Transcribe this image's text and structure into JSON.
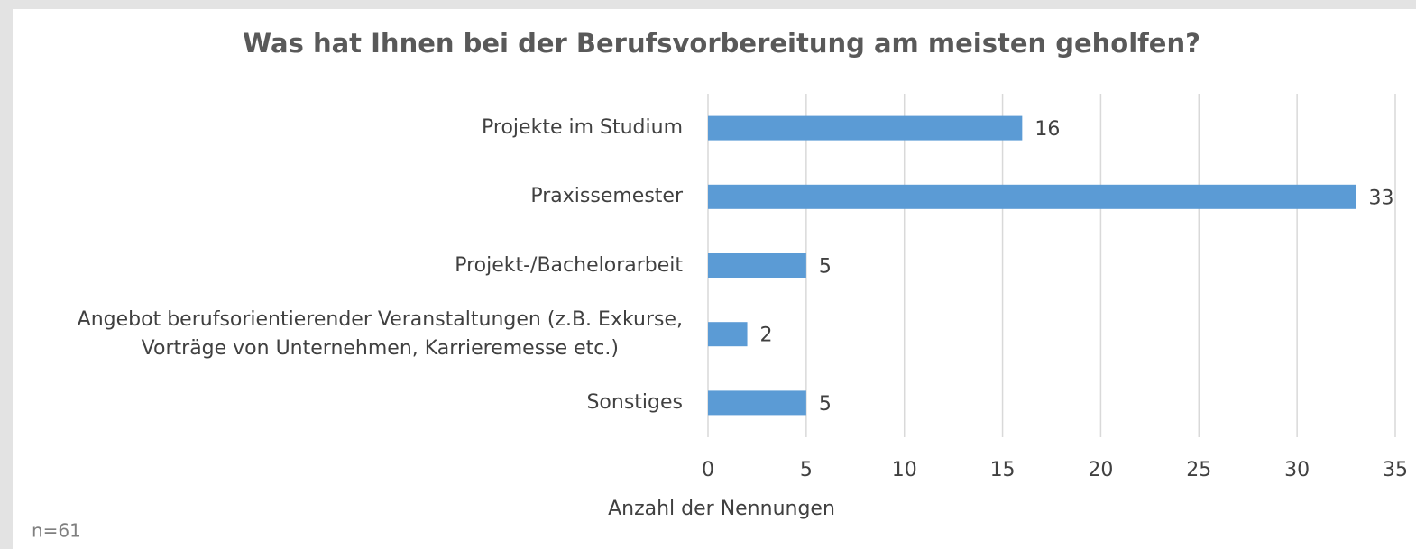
{
  "chart_data": {
    "type": "bar",
    "orientation": "horizontal",
    "title": "Was hat Ihnen bei der Berufsvorbereitung am meisten geholfen?",
    "categories": [
      "Projekte im Studium",
      "Praxissemester",
      "Projekt-/Bachelorarbeit",
      "Angebot berufsorientierender Veranstaltungen (z.B. Exkurse,\nVorträge von Unternehmen, Karrieremesse etc.)",
      "Sonstiges"
    ],
    "values": [
      16,
      33,
      5,
      2,
      5
    ],
    "color": "#5b9bd5",
    "xlim": [
      0,
      35
    ],
    "xticks": [
      0,
      5,
      10,
      15,
      20,
      25,
      30,
      35
    ],
    "xlabel": "Anzahl der Nennungen",
    "note": "n=61",
    "grid": true
  }
}
